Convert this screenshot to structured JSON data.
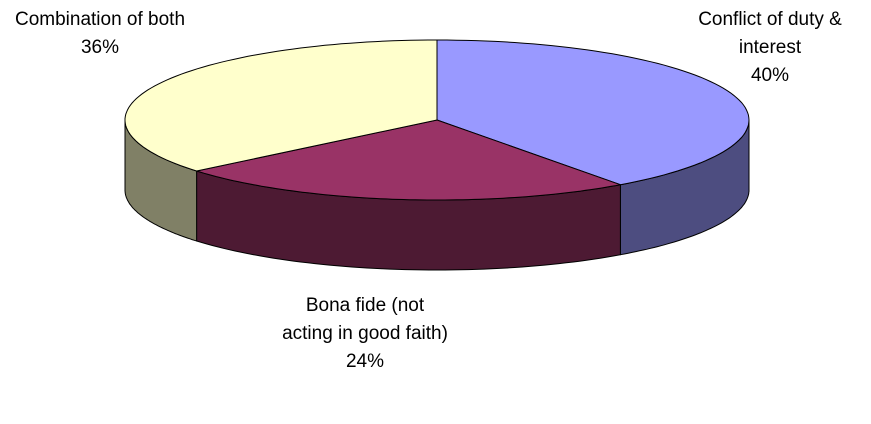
{
  "chart_data": {
    "type": "pie3d",
    "categories": [
      "Conflict of duty & interest",
      "Bona fide (not acting in good faith)",
      "Combination of both"
    ],
    "values": [
      40,
      24,
      36
    ],
    "value_labels": [
      "40%",
      "24%",
      "36%"
    ],
    "colors": [
      "#9999ff",
      "#993366",
      "#ffffcc"
    ]
  }
}
